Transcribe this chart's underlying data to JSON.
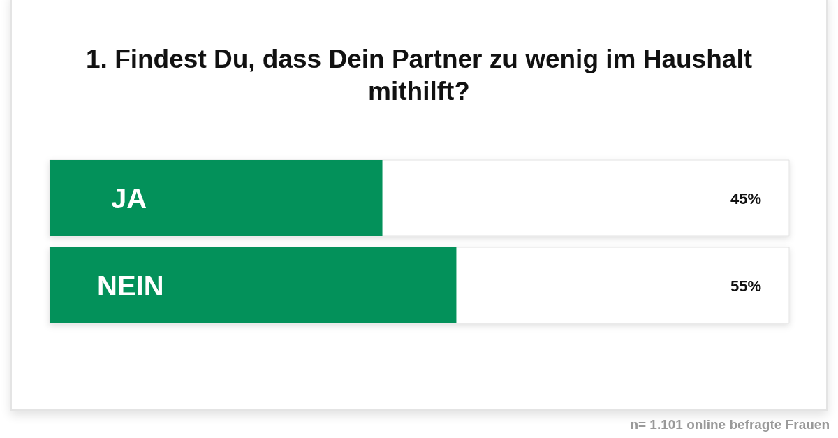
{
  "chart_data": {
    "type": "bar",
    "orientation": "horizontal",
    "title": "1. Findest Du, dass Dein Partner zu wenig im Haushalt mithilft?",
    "categories": [
      "JA",
      "NEIN"
    ],
    "values": [
      45,
      55
    ],
    "color": "#03915a",
    "value_labels": [
      "45%",
      "55%"
    ],
    "xlim": [
      0,
      100
    ],
    "annotations": [
      "n= 1.101 online befragte Frauen"
    ]
  }
}
